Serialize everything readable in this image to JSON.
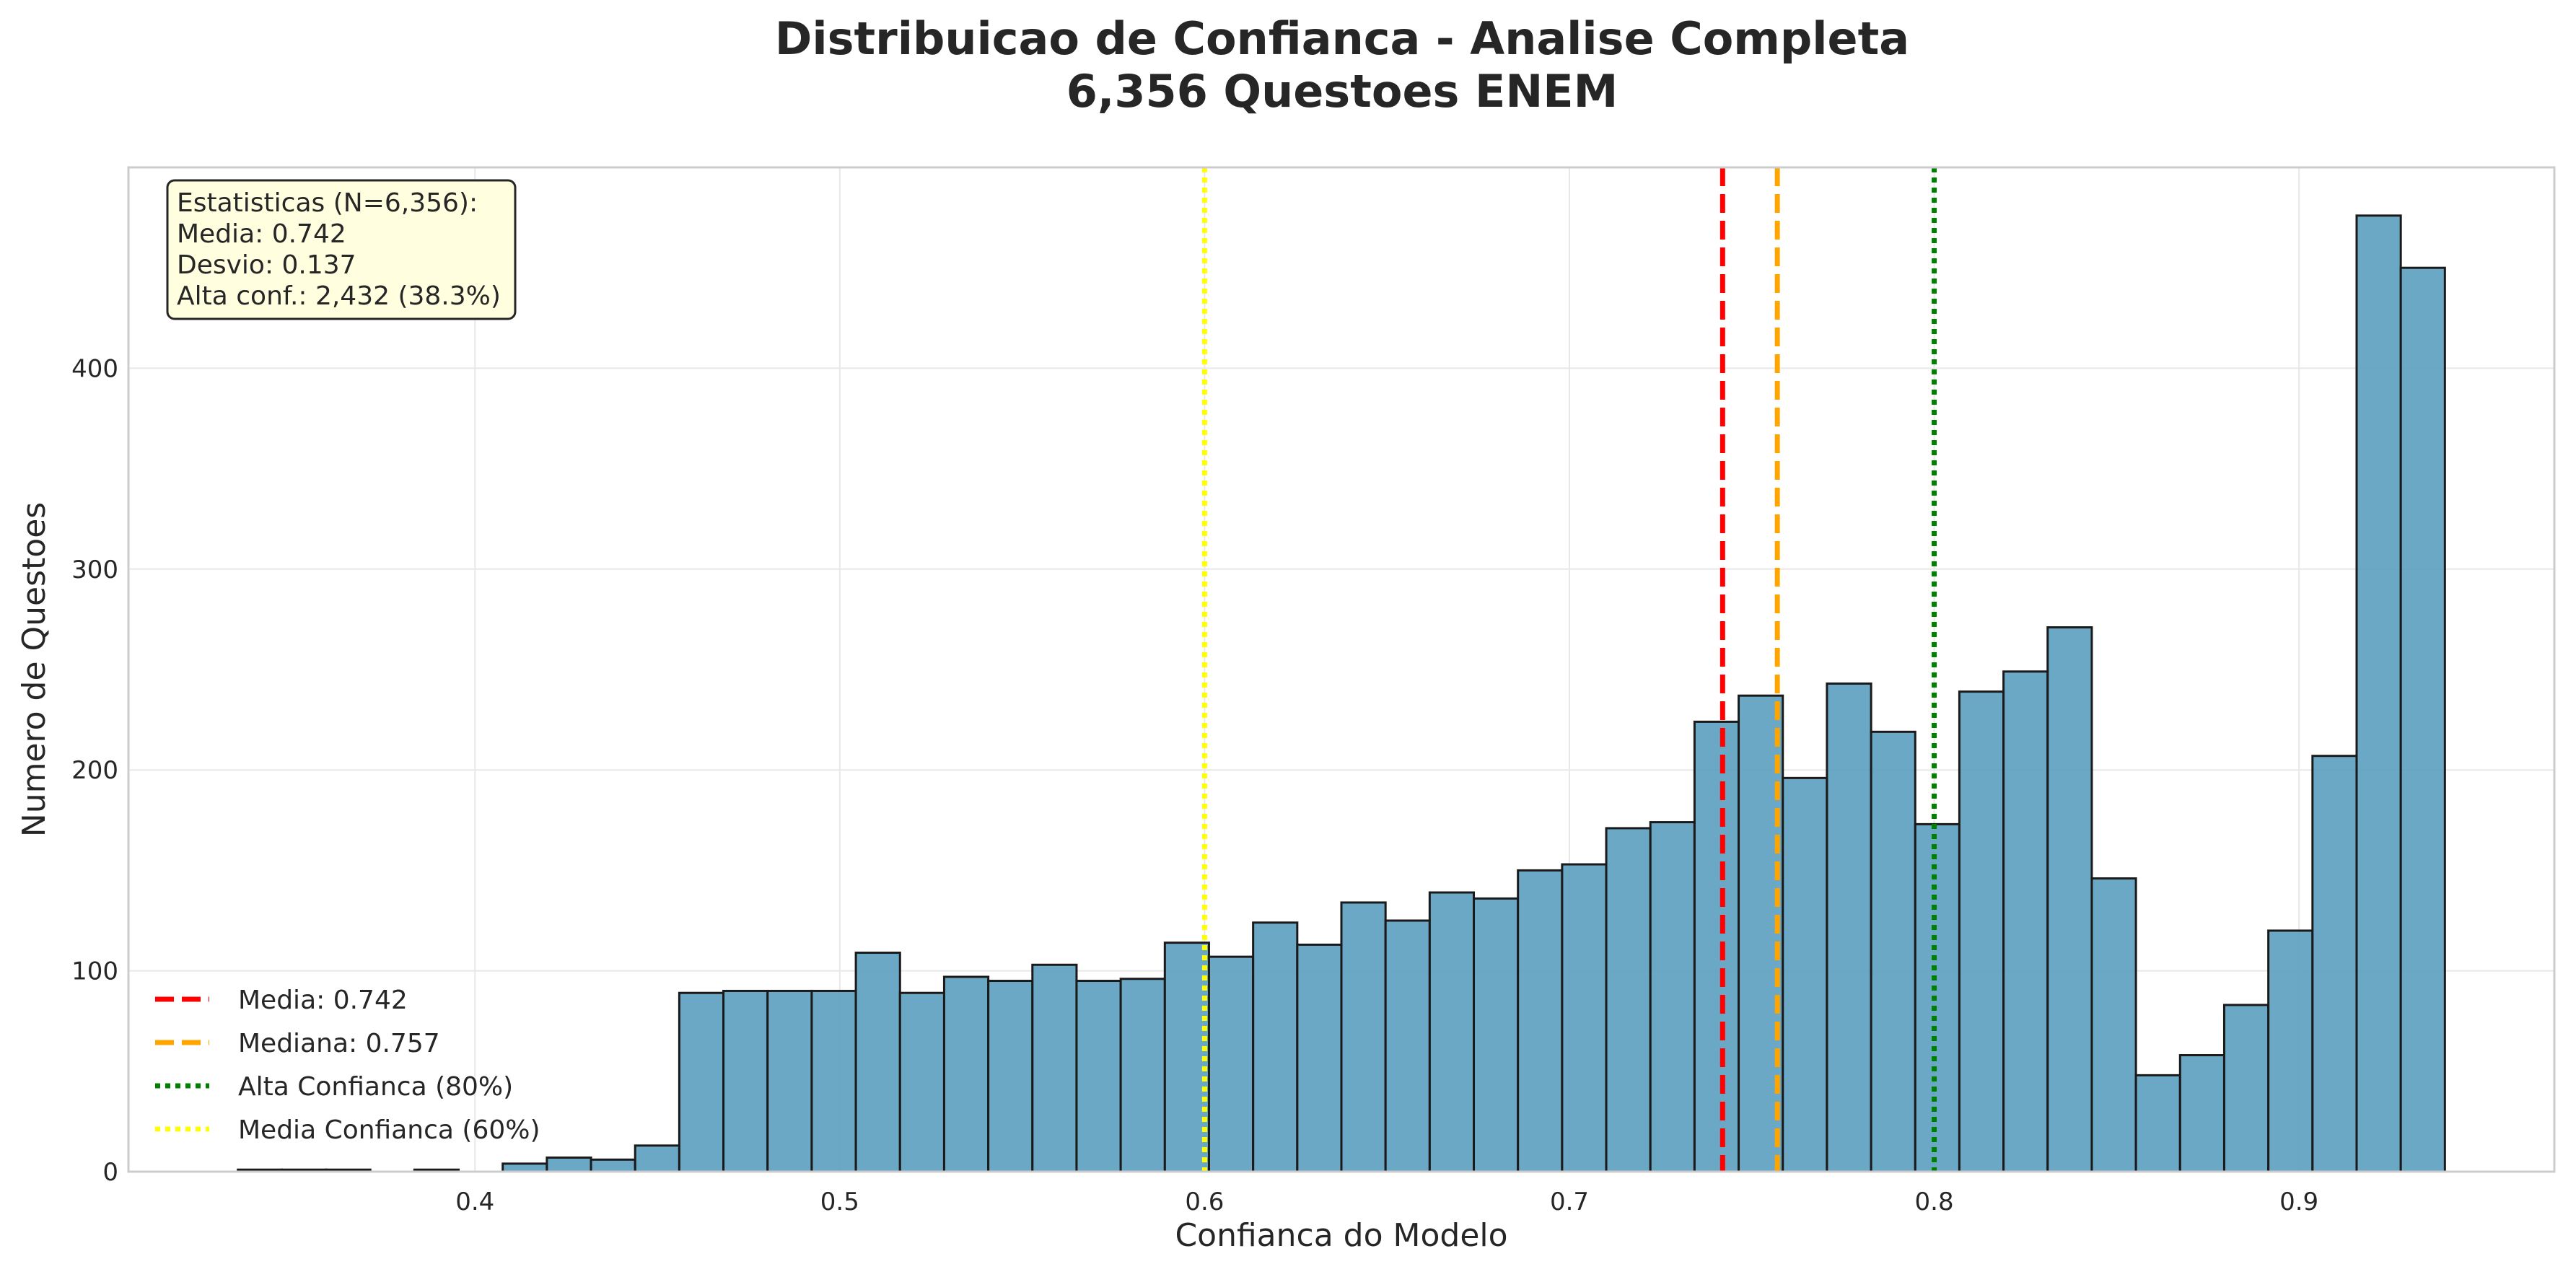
{
  "chart_data": {
    "type": "bar",
    "title_line1": "Distribuicao de Confianca - Analise Completa",
    "title_line2": "6,356 Questoes ENEM",
    "xlabel": "Confianca do Modelo",
    "ylabel": "Numero de Questoes",
    "xlim": [
      0.305,
      0.97
    ],
    "ylim": [
      0,
      500
    ],
    "xticks": [
      "0.4",
      "0.5",
      "0.6",
      "0.7",
      "0.8",
      "0.9"
    ],
    "xtick_values": [
      0.4,
      0.5,
      0.6,
      0.7,
      0.8,
      0.9
    ],
    "yticks": [
      "0",
      "100",
      "200",
      "300",
      "400"
    ],
    "ytick_values": [
      0,
      100,
      200,
      300,
      400
    ],
    "grid": true,
    "bar_color": "#5b9fbf",
    "bar_edge_color": "#1a1a1a",
    "bin_start": 0.335,
    "bin_width": 0.0121,
    "values": [
      1,
      1,
      1,
      0,
      1,
      0,
      4,
      7,
      6,
      13,
      89,
      90,
      90,
      90,
      109,
      89,
      97,
      95,
      103,
      95,
      96,
      114,
      107,
      124,
      113,
      134,
      125,
      139,
      136,
      150,
      153,
      171,
      174,
      224,
      237,
      196,
      243,
      219,
      173,
      239,
      249,
      271,
      146,
      48,
      58,
      83,
      120,
      207,
      476,
      450
    ],
    "reference_lines": [
      {
        "label": "Media: 0.742",
        "x": 0.742,
        "color": "#ff0000",
        "style": "dashed"
      },
      {
        "label": "Mediana: 0.757",
        "x": 0.757,
        "color": "#ffa500",
        "style": "dashed"
      },
      {
        "label": "Alta Confianca (80%)",
        "x": 0.8,
        "color": "#008000",
        "style": "dotted"
      },
      {
        "label": "Media Confianca (60%)",
        "x": 0.6,
        "color": "#ffff00",
        "style": "dotted"
      }
    ],
    "legend_position": "lower-left",
    "stats_box": {
      "lines": [
        "Estatisticas (N=6,356):",
        "Media: 0.742",
        "Desvio: 0.137",
        "Alta conf.: 2,432 (38.3%)"
      ],
      "background": "#ffffe0"
    }
  }
}
